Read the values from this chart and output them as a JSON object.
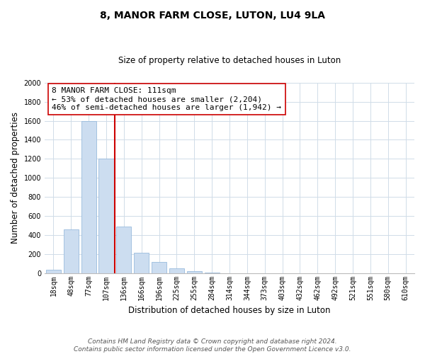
{
  "title": "8, MANOR FARM CLOSE, LUTON, LU4 9LA",
  "subtitle": "Size of property relative to detached houses in Luton",
  "xlabel": "Distribution of detached houses by size in Luton",
  "ylabel": "Number of detached properties",
  "bar_labels": [
    "18sqm",
    "48sqm",
    "77sqm",
    "107sqm",
    "136sqm",
    "166sqm",
    "196sqm",
    "225sqm",
    "255sqm",
    "284sqm",
    "314sqm",
    "344sqm",
    "373sqm",
    "403sqm",
    "432sqm",
    "462sqm",
    "492sqm",
    "521sqm",
    "551sqm",
    "580sqm",
    "610sqm"
  ],
  "bar_values": [
    35,
    455,
    1600,
    1200,
    490,
    210,
    115,
    48,
    18,
    8,
    0,
    0,
    0,
    0,
    0,
    0,
    0,
    0,
    0,
    0,
    0
  ],
  "bar_color": "#ccddf0",
  "bar_edge_color": "#99bbdd",
  "vline_index": 3,
  "vline_color": "#cc0000",
  "annotation_line1": "8 MANOR FARM CLOSE: 111sqm",
  "annotation_line2": "← 53% of detached houses are smaller (2,204)",
  "annotation_line3": "46% of semi-detached houses are larger (1,942) →",
  "annotation_box_color": "#ffffff",
  "annotation_box_edge": "#cc0000",
  "ylim": [
    0,
    2000
  ],
  "yticks": [
    0,
    200,
    400,
    600,
    800,
    1000,
    1200,
    1400,
    1600,
    1800,
    2000
  ],
  "footnote_line1": "Contains HM Land Registry data © Crown copyright and database right 2024.",
  "footnote_line2": "Contains public sector information licensed under the Open Government Licence v3.0.",
  "title_fontsize": 10,
  "subtitle_fontsize": 8.5,
  "axis_label_fontsize": 8.5,
  "tick_fontsize": 7,
  "annotation_fontsize": 8,
  "footnote_fontsize": 6.5,
  "grid_color": "#d0dce8"
}
